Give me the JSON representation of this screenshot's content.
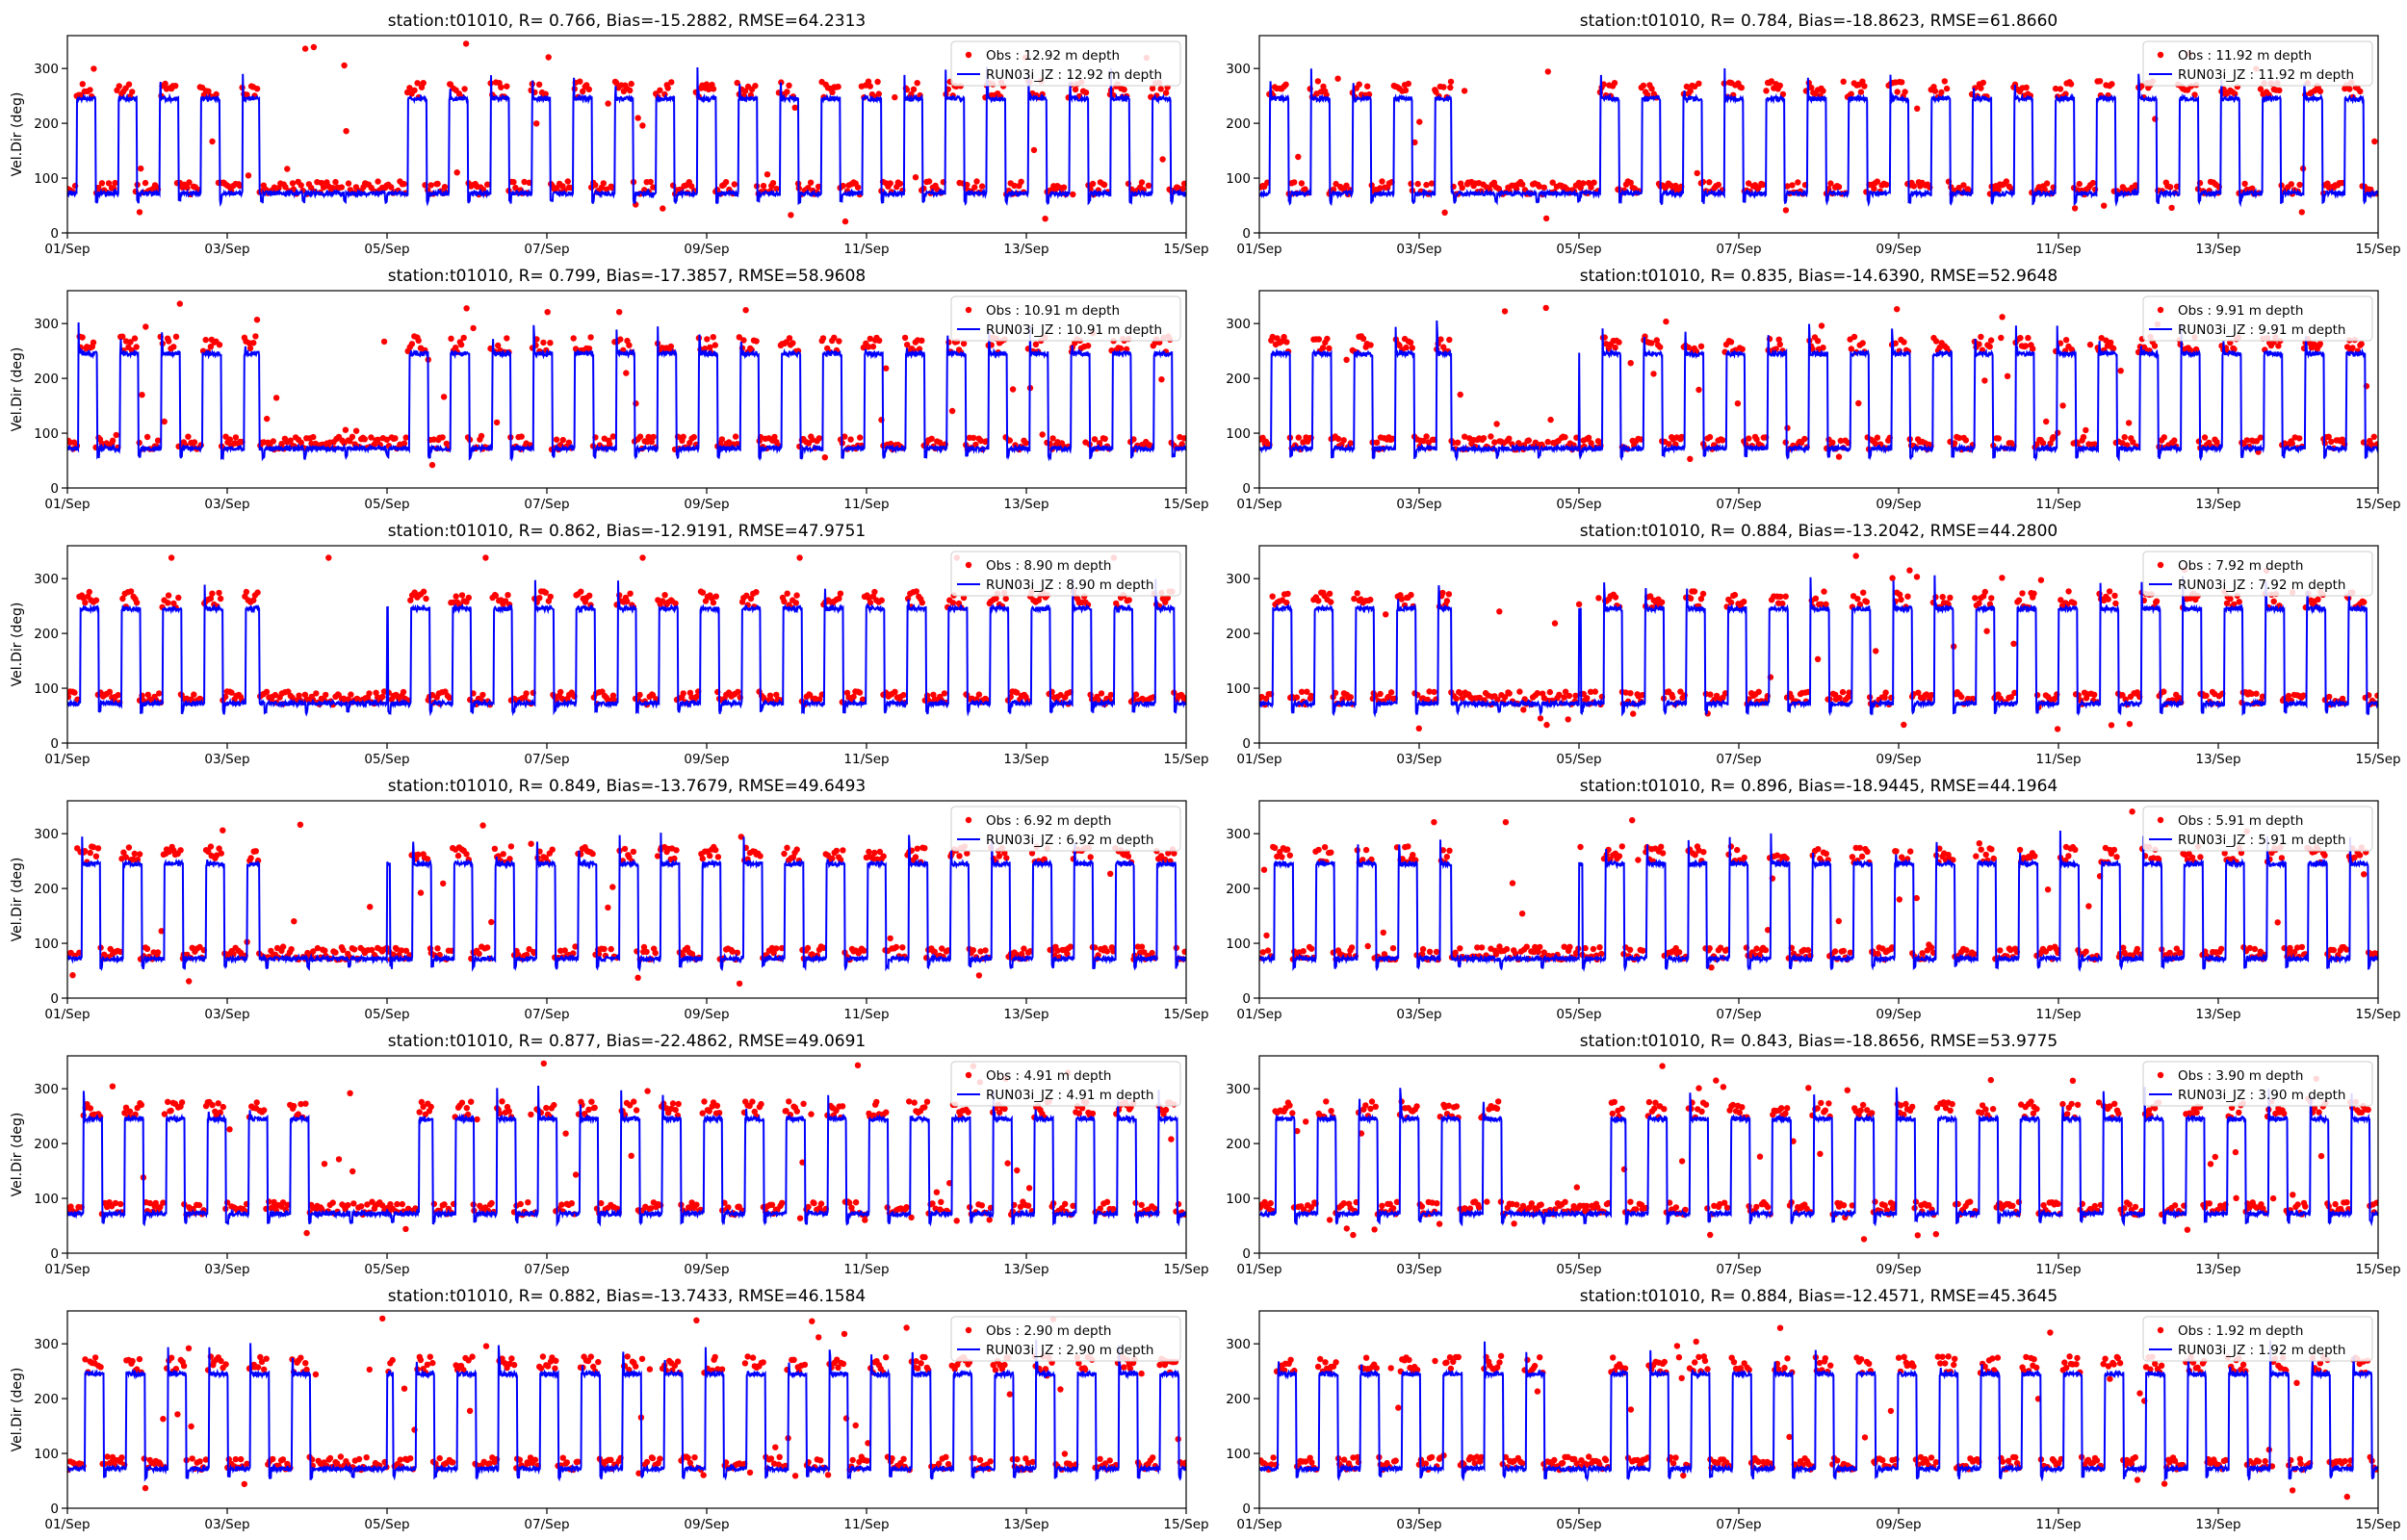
{
  "chart_data": [
    {
      "type": "line",
      "title": "station:t01010, R= 0.766, Bias=-15.2882, RMSE=64.2313",
      "ylabel": "Vel.Dir (deg)",
      "xlabel": "",
      "ylim": [
        0,
        360
      ],
      "yticks": [
        0,
        100,
        200,
        300
      ],
      "xticks": [
        "01/Sep",
        "03/Sep",
        "05/Sep",
        "07/Sep",
        "09/Sep",
        "11/Sep",
        "13/Sep",
        "15/Sep"
      ],
      "xlim_days": [
        0,
        14
      ],
      "legend": "top-right",
      "series": [
        {
          "name": "Obs : 12.92 m depth",
          "marker": "dot",
          "color": "#ff0000"
        },
        {
          "name": "RUN03i_JZ : 12.92 m depth",
          "marker": "line",
          "color": "#0000ff"
        }
      ],
      "calm_days": [
        2.4,
        4.0
      ]
    },
    {
      "type": "line",
      "title": "station:t01010, R= 0.784, Bias=-18.8623, RMSE=61.8660",
      "ylabel": "",
      "xlabel": "",
      "ylim": [
        0,
        360
      ],
      "yticks": [
        0,
        100,
        200,
        300
      ],
      "xticks": [
        "01/Sep",
        "03/Sep",
        "05/Sep",
        "07/Sep",
        "09/Sep",
        "11/Sep",
        "13/Sep",
        "15/Sep"
      ],
      "xlim_days": [
        0,
        14
      ],
      "legend": "top-right",
      "series": [
        {
          "name": "Obs : 11.92 m depth",
          "marker": "dot",
          "color": "#ff0000"
        },
        {
          "name": "RUN03i_JZ : 11.92 m depth",
          "marker": "line",
          "color": "#0000ff"
        }
      ],
      "calm_days": [
        2.4,
        4.0
      ]
    },
    {
      "type": "line",
      "title": "station:t01010, R= 0.799, Bias=-17.3857, RMSE=58.9608",
      "ylabel": "Vel.Dir (deg)",
      "xlabel": "",
      "ylim": [
        0,
        360
      ],
      "yticks": [
        0,
        100,
        200,
        300
      ],
      "xticks": [
        "01/Sep",
        "03/Sep",
        "05/Sep",
        "07/Sep",
        "09/Sep",
        "11/Sep",
        "13/Sep",
        "15/Sep"
      ],
      "xlim_days": [
        0,
        14
      ],
      "legend": "top-right",
      "series": [
        {
          "name": "Obs : 10.91 m depth",
          "marker": "dot",
          "color": "#ff0000"
        },
        {
          "name": "RUN03i_JZ : 10.91 m depth",
          "marker": "line",
          "color": "#0000ff"
        }
      ],
      "calm_days": [
        2.4,
        4.0
      ]
    },
    {
      "type": "line",
      "title": "station:t01010, R= 0.835, Bias=-14.6390, RMSE=52.9648",
      "ylabel": "",
      "xlabel": "",
      "ylim": [
        0,
        360
      ],
      "yticks": [
        0,
        100,
        200,
        300
      ],
      "xticks": [
        "01/Sep",
        "03/Sep",
        "05/Sep",
        "07/Sep",
        "09/Sep",
        "11/Sep",
        "13/Sep",
        "15/Sep"
      ],
      "xlim_days": [
        0,
        14
      ],
      "legend": "top-right",
      "series": [
        {
          "name": "Obs : 9.91 m depth",
          "marker": "dot",
          "color": "#ff0000"
        },
        {
          "name": "RUN03i_JZ : 9.91 m depth",
          "marker": "line",
          "color": "#0000ff"
        }
      ],
      "calm_days": [
        2.4,
        4.0
      ]
    },
    {
      "type": "line",
      "title": "station:t01010, R= 0.862, Bias=-12.9191, RMSE=47.9751",
      "ylabel": "Vel.Dir (deg)",
      "xlabel": "",
      "ylim": [
        0,
        360
      ],
      "yticks": [
        0,
        100,
        200,
        300
      ],
      "xticks": [
        "01/Sep",
        "03/Sep",
        "05/Sep",
        "07/Sep",
        "09/Sep",
        "11/Sep",
        "13/Sep",
        "15/Sep"
      ],
      "xlim_days": [
        0,
        14
      ],
      "legend": "top-right",
      "series": [
        {
          "name": "Obs : 8.90 m depth",
          "marker": "dot",
          "color": "#ff0000"
        },
        {
          "name": "RUN03i_JZ : 8.90 m depth",
          "marker": "line",
          "color": "#0000ff"
        }
      ],
      "calm_days": [
        2.4,
        4.0
      ]
    },
    {
      "type": "line",
      "title": "station:t01010, R= 0.884, Bias=-13.2042, RMSE=44.2800",
      "ylabel": "",
      "xlabel": "",
      "ylim": [
        0,
        360
      ],
      "yticks": [
        0,
        100,
        200,
        300
      ],
      "xticks": [
        "01/Sep",
        "03/Sep",
        "05/Sep",
        "07/Sep",
        "09/Sep",
        "11/Sep",
        "13/Sep",
        "15/Sep"
      ],
      "xlim_days": [
        0,
        14
      ],
      "legend": "top-right",
      "series": [
        {
          "name": "Obs : 7.92 m depth",
          "marker": "dot",
          "color": "#ff0000"
        },
        {
          "name": "RUN03i_JZ : 7.92 m depth",
          "marker": "line",
          "color": "#0000ff"
        }
      ],
      "calm_days": [
        2.4,
        4.0
      ]
    },
    {
      "type": "line",
      "title": "station:t01010, R= 0.849, Bias=-13.7679, RMSE=49.6493",
      "ylabel": "Vel.Dir (deg)",
      "xlabel": "",
      "ylim": [
        0,
        360
      ],
      "yticks": [
        0,
        100,
        200,
        300
      ],
      "xticks": [
        "01/Sep",
        "03/Sep",
        "05/Sep",
        "07/Sep",
        "09/Sep",
        "11/Sep",
        "13/Sep",
        "15/Sep"
      ],
      "xlim_days": [
        0,
        14
      ],
      "legend": "top-right",
      "series": [
        {
          "name": "Obs : 6.92 m depth",
          "marker": "dot",
          "color": "#ff0000"
        },
        {
          "name": "RUN03i_JZ : 6.92 m depth",
          "marker": "line",
          "color": "#0000ff"
        }
      ],
      "calm_days": [
        2.4,
        4.0
      ]
    },
    {
      "type": "line",
      "title": "station:t01010, R= 0.896, Bias=-18.9445, RMSE=44.1964",
      "ylabel": "",
      "xlabel": "",
      "ylim": [
        0,
        360
      ],
      "yticks": [
        0,
        100,
        200,
        300
      ],
      "xticks": [
        "01/Sep",
        "03/Sep",
        "05/Sep",
        "07/Sep",
        "09/Sep",
        "11/Sep",
        "13/Sep",
        "15/Sep"
      ],
      "xlim_days": [
        0,
        14
      ],
      "legend": "top-right",
      "series": [
        {
          "name": "Obs : 5.91 m depth",
          "marker": "dot",
          "color": "#ff0000"
        },
        {
          "name": "RUN03i_JZ : 5.91 m depth",
          "marker": "line",
          "color": "#0000ff"
        }
      ],
      "calm_days": [
        2.4,
        4.0
      ]
    },
    {
      "type": "line",
      "title": "station:t01010, R= 0.877, Bias=-22.4862, RMSE=49.0691",
      "ylabel": "Vel.Dir (deg)",
      "xlabel": "",
      "ylim": [
        0,
        360
      ],
      "yticks": [
        0,
        100,
        200,
        300
      ],
      "xticks": [
        "01/Sep",
        "03/Sep",
        "05/Sep",
        "07/Sep",
        "09/Sep",
        "11/Sep",
        "13/Sep",
        "15/Sep"
      ],
      "xlim_days": [
        0,
        14
      ],
      "legend": "top-right",
      "series": [
        {
          "name": "Obs : 4.91 m depth",
          "marker": "dot",
          "color": "#ff0000"
        },
        {
          "name": "RUN03i_JZ : 4.91 m depth",
          "marker": "line",
          "color": "#0000ff"
        }
      ],
      "calm_days": [
        3.2,
        4.4
      ]
    },
    {
      "type": "line",
      "title": "station:t01010, R= 0.843, Bias=-18.8656, RMSE=53.9775",
      "ylabel": "",
      "xlabel": "",
      "ylim": [
        0,
        360
      ],
      "yticks": [
        0,
        100,
        200,
        300
      ],
      "xticks": [
        "01/Sep",
        "03/Sep",
        "05/Sep",
        "07/Sep",
        "09/Sep",
        "11/Sep",
        "13/Sep",
        "15/Sep"
      ],
      "xlim_days": [
        0,
        14
      ],
      "legend": "top-right",
      "series": [
        {
          "name": "Obs : 3.90 m depth",
          "marker": "dot",
          "color": "#ff0000"
        },
        {
          "name": "RUN03i_JZ : 3.90 m depth",
          "marker": "line",
          "color": "#0000ff"
        }
      ],
      "calm_days": [
        3.2,
        4.4
      ]
    },
    {
      "type": "line",
      "title": "station:t01010, R= 0.882, Bias=-13.7433, RMSE=46.1584",
      "ylabel": "Vel.Dir (deg)",
      "xlabel": "",
      "ylim": [
        0,
        360
      ],
      "yticks": [
        0,
        100,
        200,
        300
      ],
      "xticks": [
        "01/Sep",
        "03/Sep",
        "05/Sep",
        "07/Sep",
        "09/Sep",
        "11/Sep",
        "13/Sep",
        "15/Sep"
      ],
      "xlim_days": [
        0,
        14
      ],
      "legend": "top-right",
      "series": [
        {
          "name": "Obs : 2.90 m depth",
          "marker": "dot",
          "color": "#ff0000"
        },
        {
          "name": "RUN03i_JZ : 2.90 m depth",
          "marker": "line",
          "color": "#0000ff"
        }
      ],
      "calm_days": [
        3.2,
        4.0
      ]
    },
    {
      "type": "line",
      "title": "station:t01010, R= 0.884, Bias=-12.4571, RMSE=45.3645",
      "ylabel": "",
      "xlabel": "",
      "ylim": [
        0,
        360
      ],
      "yticks": [
        0,
        100,
        200,
        300
      ],
      "xticks": [
        "01/Sep",
        "03/Sep",
        "05/Sep",
        "07/Sep",
        "09/Sep",
        "11/Sep",
        "13/Sep",
        "15/Sep"
      ],
      "xlim_days": [
        0,
        14
      ],
      "legend": "top-right",
      "series": [
        {
          "name": "Obs : 1.92 m depth",
          "marker": "dot",
          "color": "#ff0000"
        },
        {
          "name": "RUN03i_JZ : 1.92 m depth",
          "marker": "line",
          "color": "#0000ff"
        }
      ],
      "calm_days": [
        3.6,
        4.4
      ]
    }
  ]
}
